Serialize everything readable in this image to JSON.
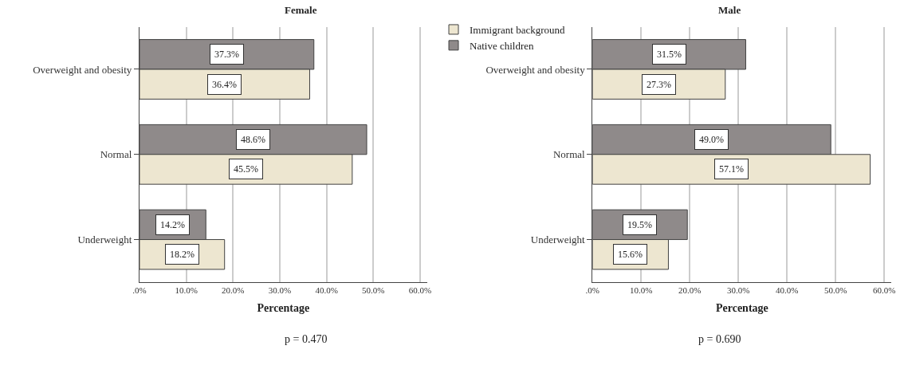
{
  "chart_data": [
    {
      "type": "bar",
      "orientation": "horizontal",
      "title": "Female",
      "xlabel": "Percentage",
      "categories": [
        "Overweight and obesity",
        "Normal",
        "Underweight"
      ],
      "series": [
        {
          "name": "Native children",
          "color": "#8f8a8a",
          "values": [
            37.3,
            48.6,
            14.2
          ],
          "value_labels": [
            "37.3%",
            "48.6%",
            "14.2%"
          ]
        },
        {
          "name": "Immigrant background",
          "color": "#ede6d0",
          "values": [
            36.4,
            45.5,
            18.2
          ],
          "value_labels": [
            "36.4%",
            "45.5%",
            "18.2%"
          ]
        }
      ],
      "xlim": [
        0,
        61.5
      ],
      "xticks": [
        {
          "value": 0,
          "label": ".0%"
        },
        {
          "value": 10,
          "label": "10.0%"
        },
        {
          "value": 20,
          "label": "20.0%"
        },
        {
          "value": 30,
          "label": "30.0%"
        },
        {
          "value": 40,
          "label": "40.0%"
        },
        {
          "value": 50,
          "label": "50.0%"
        },
        {
          "value": 60,
          "label": "60.0%"
        }
      ],
      "grid": "x",
      "legend": "top right",
      "annotations": [
        "p = 0.470"
      ]
    },
    {
      "type": "bar",
      "orientation": "horizontal",
      "title": "Male",
      "xlabel": "Percentage",
      "categories": [
        "Overweight and obesity",
        "Normal",
        "Underweight"
      ],
      "series": [
        {
          "color": "#8f8a8a",
          "values": [
            31.5,
            49.0,
            19.5
          ],
          "value_labels": [
            "31.5%",
            "49.0%",
            "19.5%"
          ]
        },
        {
          "color": "#ede6d0",
          "values": [
            27.3,
            57.1,
            15.6
          ],
          "value_labels": [
            "27.3%",
            "57.1%",
            "15.6%"
          ]
        }
      ],
      "xlim": [
        0,
        61.5
      ],
      "xticks": [
        {
          "value": 0,
          "label": ".0%"
        },
        {
          "value": 10,
          "label": "10.0%"
        },
        {
          "value": 20,
          "label": "20.0%"
        },
        {
          "value": 30,
          "label": "30.0%"
        },
        {
          "value": 40,
          "label": "40.0%"
        },
        {
          "value": 50,
          "label": "50.0%"
        },
        {
          "value": 60,
          "label": "60.0%"
        }
      ],
      "grid": "x",
      "annotations": [
        "p = 0.690"
      ]
    }
  ]
}
